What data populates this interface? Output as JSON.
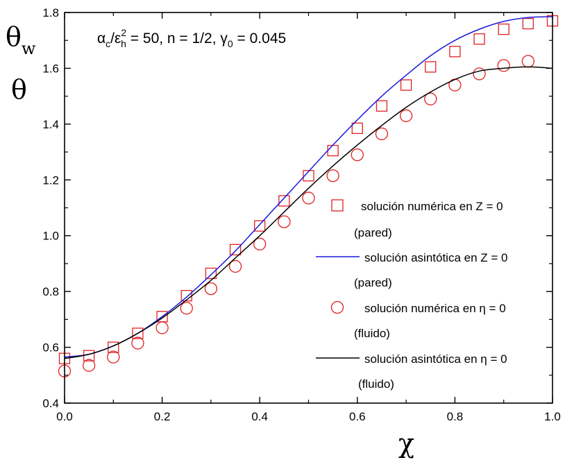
{
  "chart_data": {
    "type": "line",
    "title": "",
    "annotation": {
      "alpha": "α",
      "alpha_sub": "c",
      "slash": "/",
      "epsilon": "ε",
      "epsilon_sup": "2",
      "epsilon_sub": "h",
      "rest": " = 50, n = 1/2, γ",
      "gamma_sub": "0",
      "tail": " = 0.045"
    },
    "xlabel": "χ",
    "ylabel_top": "θ",
    "ylabel_top_sub": "w",
    "ylabel_bottom": "θ",
    "xlim": [
      0.0,
      1.0
    ],
    "ylim": [
      0.4,
      1.8
    ],
    "xticks": [
      0.0,
      0.2,
      0.4,
      0.6,
      0.8,
      1.0
    ],
    "yticks": [
      0.4,
      0.6,
      0.8,
      1.0,
      1.2,
      1.4,
      1.6,
      1.8
    ],
    "xtick_labels": [
      "0.0",
      "0.2",
      "0.4",
      "0.6",
      "0.8",
      "1.0"
    ],
    "ytick_labels": [
      "0.4",
      "0.6",
      "0.8",
      "1.0",
      "1.2",
      "1.4",
      "1.6",
      "1.8"
    ],
    "grid": false,
    "legend_position": "bottom-right",
    "series": [
      {
        "name": "solución numérica en Z = 0",
        "name_line2": "(pared)",
        "kind": "marker-square",
        "color": "#e02020",
        "x": [
          0.0,
          0.05,
          0.1,
          0.15,
          0.2,
          0.25,
          0.3,
          0.35,
          0.4,
          0.45,
          0.5,
          0.55,
          0.6,
          0.65,
          0.7,
          0.75,
          0.8,
          0.85,
          0.9,
          0.95,
          1.0
        ],
        "y": [
          0.56,
          0.57,
          0.6,
          0.65,
          0.71,
          0.785,
          0.865,
          0.95,
          1.035,
          1.125,
          1.215,
          1.305,
          1.385,
          1.465,
          1.54,
          1.605,
          1.66,
          1.705,
          1.74,
          1.76,
          1.77
        ]
      },
      {
        "name": "solución asintótica en Z = 0",
        "name_line2": "(pared)",
        "kind": "line",
        "color": "#1a1adc",
        "x": [
          0.0,
          0.05,
          0.1,
          0.15,
          0.2,
          0.25,
          0.3,
          0.35,
          0.4,
          0.45,
          0.5,
          0.55,
          0.6,
          0.65,
          0.7,
          0.75,
          0.8,
          0.85,
          0.9,
          0.95,
          1.0
        ],
        "y": [
          0.565,
          0.575,
          0.605,
          0.65,
          0.71,
          0.78,
          0.86,
          0.945,
          1.04,
          1.135,
          1.23,
          1.325,
          1.415,
          1.5,
          1.575,
          1.645,
          1.7,
          1.74,
          1.768,
          1.782,
          1.785
        ]
      },
      {
        "name": "solución numérica en η = 0",
        "name_line2": "(fluido)",
        "kind": "marker-circle",
        "color": "#e02020",
        "x": [
          0.0,
          0.05,
          0.1,
          0.15,
          0.2,
          0.25,
          0.3,
          0.35,
          0.4,
          0.45,
          0.5,
          0.55,
          0.6,
          0.65,
          0.7,
          0.75,
          0.8,
          0.85,
          0.9,
          0.95
        ],
        "y": [
          0.515,
          0.535,
          0.565,
          0.615,
          0.67,
          0.74,
          0.81,
          0.89,
          0.97,
          1.05,
          1.135,
          1.215,
          1.29,
          1.365,
          1.43,
          1.49,
          1.54,
          1.58,
          1.61,
          1.625
        ]
      },
      {
        "name": "solución asintótica en η = 0",
        "name_line2": "(fluido)",
        "kind": "line",
        "color": "#000000",
        "x": [
          0.0,
          0.05,
          0.1,
          0.15,
          0.2,
          0.25,
          0.3,
          0.35,
          0.4,
          0.45,
          0.5,
          0.55,
          0.6,
          0.65,
          0.7,
          0.75,
          0.8,
          0.85,
          0.9,
          0.95,
          1.0
        ],
        "y": [
          0.56,
          0.575,
          0.605,
          0.65,
          0.705,
          0.77,
          0.84,
          0.92,
          1.0,
          1.085,
          1.17,
          1.25,
          1.325,
          1.395,
          1.46,
          1.515,
          1.56,
          1.59,
          1.6,
          1.605,
          1.6
        ]
      }
    ]
  }
}
